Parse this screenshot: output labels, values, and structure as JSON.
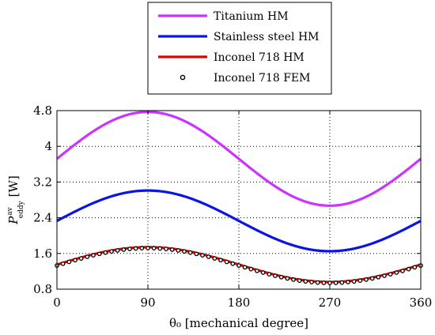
{
  "chart_data": {
    "type": "line",
    "xlabel": "θ₀ [mechanical degree]",
    "ylabel_main": "P",
    "ylabel_sup": "av",
    "ylabel_sub": "eddy",
    "ylabel_unit": "[W]",
    "xlim": [
      0,
      360
    ],
    "ylim": [
      0.8,
      4.8
    ],
    "x_ticks": [
      0,
      90,
      180,
      270,
      360
    ],
    "x_tick_labels": [
      "0",
      "90",
      "180",
      "270",
      "360"
    ],
    "y_ticks": [
      0.8,
      1.6,
      2.4,
      3.2,
      4,
      4.8
    ],
    "y_tick_labels": [
      "0.8",
      "1.6",
      "2.4",
      "3.2",
      "4",
      "4.8"
    ],
    "grid": true,
    "grid_style": "dotted",
    "legend_position": "top-center, above plot",
    "series": [
      {
        "name": "Titanium HM",
        "kind": "line",
        "color": "#cc33ff",
        "model": "mean + amplitude * sin(x)",
        "mean": 3.72,
        "amplitude": 1.05,
        "x": [
          0,
          45,
          90,
          135,
          180,
          225,
          270,
          315,
          360
        ],
        "values": [
          3.72,
          4.46,
          4.77,
          4.46,
          3.72,
          2.98,
          2.67,
          2.98,
          3.72
        ]
      },
      {
        "name": "Stainless steel HM",
        "kind": "line",
        "color": "#0a14e6",
        "model": "mean + amplitude * sin(x)",
        "mean": 2.33,
        "amplitude": 0.68,
        "x": [
          0,
          45,
          90,
          135,
          180,
          225,
          270,
          315,
          360
        ],
        "values": [
          2.33,
          2.81,
          3.01,
          2.81,
          2.33,
          1.85,
          1.65,
          1.85,
          2.33
        ]
      },
      {
        "name": "Inconel 718 HM",
        "kind": "line",
        "color": "#e00000",
        "model": "mean + amplitude * sin(x)",
        "mean": 1.35,
        "amplitude": 0.39,
        "x": [
          0,
          45,
          90,
          135,
          180,
          225,
          270,
          315,
          360
        ],
        "values": [
          1.35,
          1.63,
          1.74,
          1.63,
          1.35,
          1.07,
          0.96,
          1.07,
          1.35
        ]
      },
      {
        "name": "Inconel 718 FEM",
        "kind": "markers",
        "color": "#000000",
        "model": "mean + amplitude * sin(x)",
        "mean": 1.33,
        "amplitude": 0.39,
        "x": [
          0,
          45,
          90,
          135,
          180,
          225,
          270,
          315,
          360
        ],
        "values": [
          1.33,
          1.61,
          1.72,
          1.61,
          1.33,
          1.05,
          0.94,
          1.05,
          1.33
        ]
      }
    ]
  }
}
